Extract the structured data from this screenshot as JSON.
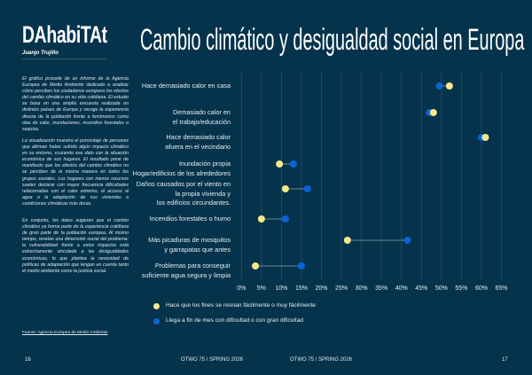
{
  "brand": {
    "name": "DAhabiTAt",
    "author": "Juanjo Trujillo"
  },
  "intro": [
    "El gráfico procede de un informe de la Agencia Europea de Medio Ambiente dedicado a analizar cómo perciben los ciudadanos europeos los efectos del cambio climático en su vida cotidiana. El estudio se basa en una amplia encuesta realizada en distintos países de Europa y recoge la experiencia directa de la población frente a fenómenos como olas de calor, inundaciones, incendios forestales o sequías.",
    "La visualización muestra el porcentaje de personas que afirman haber sufrido algún impacto climático en su entorno, cruzando ese dato con la situación económica de sus hogares. El resultado pone de manifiesto que los efectos del cambio climático no se perciben de la misma manera en todos los grupos sociales. Los hogares con menos recursos suelen declarar con mayor frecuencia dificultades relacionadas con el calor extremo, el acceso al agua o la adaptación de sus viviendas a condiciones climáticas más duras.",
    "En conjunto, los datos sugieren que el cambio climático ya forma parte de la experiencia cotidiana de gran parte de la población europea. Al mismo tiempo, revelan una dimensión social del problema: la vulnerabilidad frente a estos impactos está estrechamente vinculada a las desigualdades económicas, lo que plantea la necesidad de políticas de adaptación que tengan en cuenta tanto el medio ambiente como la justicia social."
  ],
  "source": "Fuente: Agencia Europea de Medio Ambiente",
  "footer": {
    "left_page": "16",
    "left_title": "OTWO 75 / SPRING 2026",
    "right_title": "OTWO 75 / SPRING 2026",
    "right_page": "17"
  },
  "chart_data": {
    "type": "dumbbell",
    "title": "Cambio climático y desigualdad social en Europa",
    "categories": [
      "Hace demasiado calor en casa",
      "Demasiado calor en\nel trabajo/educación",
      "Hace demasiado calor\nafuera en el vecindario",
      "Inundación propia\nHogar/edificios de los alrededores",
      "Daños causados por el viento en\nla propia vivienda y\nlos edificios circundantes.",
      "Incendios forestales o humo",
      "Más picaduras de mosquitos\ny garrapatas que antes",
      "Problemas para conseguir\nsuficiente agua segura y limpia"
    ],
    "series": [
      {
        "name": "Hace que los fines se reúnan fácilmente o muy fácilmente",
        "color": "#f7e98a",
        "values": [
          52,
          48,
          61,
          9.5,
          11,
          5,
          26.5,
          3.5
        ]
      },
      {
        "name": "Llega a fin de mes con dificultad o con gran dificultad",
        "color": "#0a63d6",
        "values": [
          49.5,
          47,
          60,
          13,
          16.5,
          11,
          41.5,
          15
        ]
      }
    ],
    "xlim": [
      0,
      65
    ],
    "xticks": [
      "0%",
      "5%",
      "10%",
      "15%",
      "20%",
      "25%",
      "30%",
      "35%",
      "40%",
      "45%",
      "50%",
      "55%",
      "60%",
      "65%"
    ],
    "grid": true,
    "legend": "bottom"
  }
}
